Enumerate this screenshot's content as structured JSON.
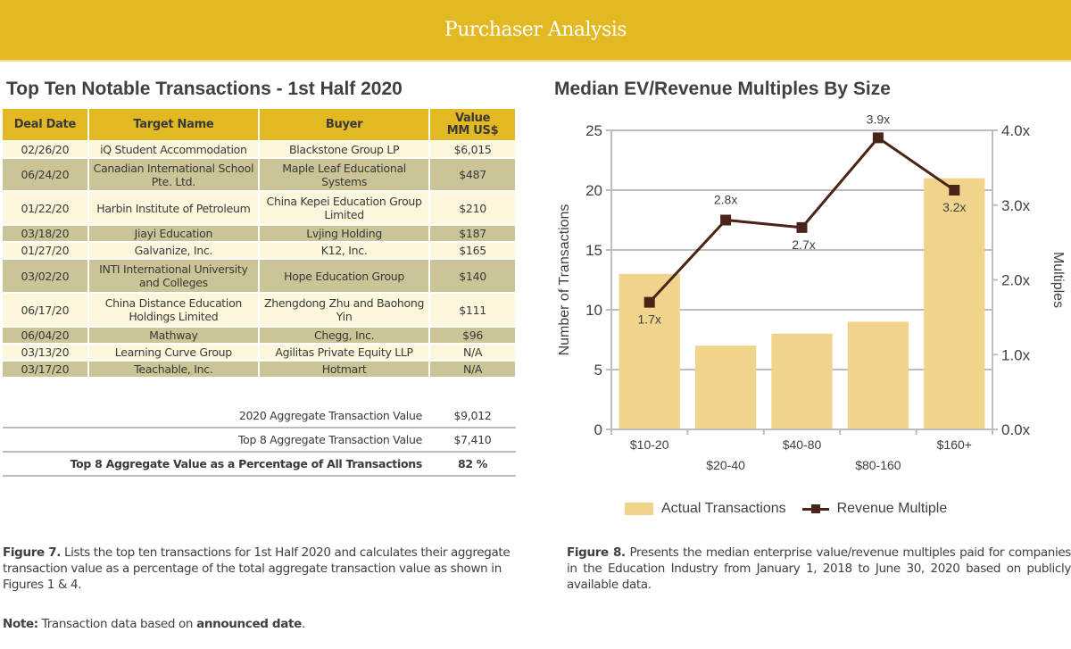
{
  "banner": {
    "title": "Purchaser Analysis"
  },
  "left": {
    "title": "Top Ten Notable Transactions - 1st Half 2020",
    "table": {
      "headers": [
        "Deal Date",
        "Target Name",
        "Buyer",
        "Value MM US$"
      ],
      "rows": [
        {
          "date": "02/26/20",
          "target": "iQ Student Accommodation",
          "buyer": "Blackstone Group LP",
          "value": "$6,015"
        },
        {
          "date": "06/24/20",
          "target": "Canadian International School Pte. Ltd.",
          "buyer": "Maple Leaf Educational Systems",
          "value": "$487"
        },
        {
          "date": "01/22/20",
          "target": "Harbin Institute of Petroleum",
          "buyer": "China Kepei Education Group Limited",
          "value": "$210"
        },
        {
          "date": "03/18/20",
          "target": "Jiayi Education",
          "buyer": "Lvjing Holding",
          "value": "$187"
        },
        {
          "date": "01/27/20",
          "target": "Galvanize, Inc.",
          "buyer": "K12, Inc.",
          "value": "$165"
        },
        {
          "date": "03/02/20",
          "target": "INTI International University and Colleges",
          "buyer": "Hope Education Group",
          "value": "$140"
        },
        {
          "date": "06/17/20",
          "target": "China Distance Education Holdings Limited",
          "buyer": "Zhengdong Zhu and Baohong Yin",
          "value": "$111"
        },
        {
          "date": "06/04/20",
          "target": "Mathway",
          "buyer": "Chegg, Inc.",
          "value": "$96"
        },
        {
          "date": "03/13/20",
          "target": "Learning Curve Group",
          "buyer": "Agilitas Private Equity LLP",
          "value": "N/A"
        },
        {
          "date": "03/17/20",
          "target": "Teachable, Inc.",
          "buyer": "Hotmart",
          "value": "N/A"
        }
      ]
    },
    "summary": [
      {
        "label": "2020 Aggregate Transaction Value",
        "value": "$9,012"
      },
      {
        "label": "Top 8 Aggregate Transaction Value",
        "value": "$7,410"
      },
      {
        "label": "Top 8 Aggregate Value as a Percentage of All Transactions",
        "value": "82 %"
      }
    ],
    "caption": {
      "fig_label": "Figure 7.",
      "fig_text": " Lists the top ten transactions for 1st Half 2020 and calculates their aggregate transaction value as a percentage of the total aggregate transaction value as shown in Figures 1 & 4.",
      "note_label": "Note:",
      "note_text": " Transaction data based on ",
      "note_bold": "announced date",
      "note_end": "."
    }
  },
  "right": {
    "title": "Median EV/Revenue Multiples By Size",
    "caption": {
      "fig_label": "Figure 8.",
      "fig_text": " Presents the median enterprise value/revenue multiples paid for companies in the Education Industry from January 1, 2018 to June 30, 2020 based on publicly available data."
    }
  },
  "chart_data": {
    "type": "bar",
    "title": "Median EV/Revenue Multiples By Size",
    "categories": [
      "$10-20",
      "$20-40",
      "$40-80",
      "$80-160",
      "$160+"
    ],
    "series": [
      {
        "name": "Actual Transactions",
        "type": "bar",
        "axis": "left",
        "values": [
          13,
          7,
          8,
          9,
          21
        ],
        "color": "#f0d48c"
      },
      {
        "name": "Revenue Multiple",
        "type": "line",
        "axis": "right",
        "values": [
          1.7,
          2.8,
          2.7,
          3.9,
          3.2
        ],
        "labels": [
          "1.7x",
          "2.8x",
          "2.7x",
          "3.9x",
          "3.2x"
        ],
        "color": "#4a2418"
      }
    ],
    "ylabel": "Number of Transactions",
    "ylabel_right": "Multiples",
    "ylim": [
      0,
      25
    ],
    "yticks": [
      "0",
      "5",
      "10",
      "15",
      "20",
      "25"
    ],
    "ylim_right": [
      0,
      4
    ],
    "yticks_right": [
      "0.0x",
      "1.0x",
      "2.0x",
      "3.0x",
      "4.0x"
    ],
    "grid": true,
    "legend": "bottom"
  }
}
